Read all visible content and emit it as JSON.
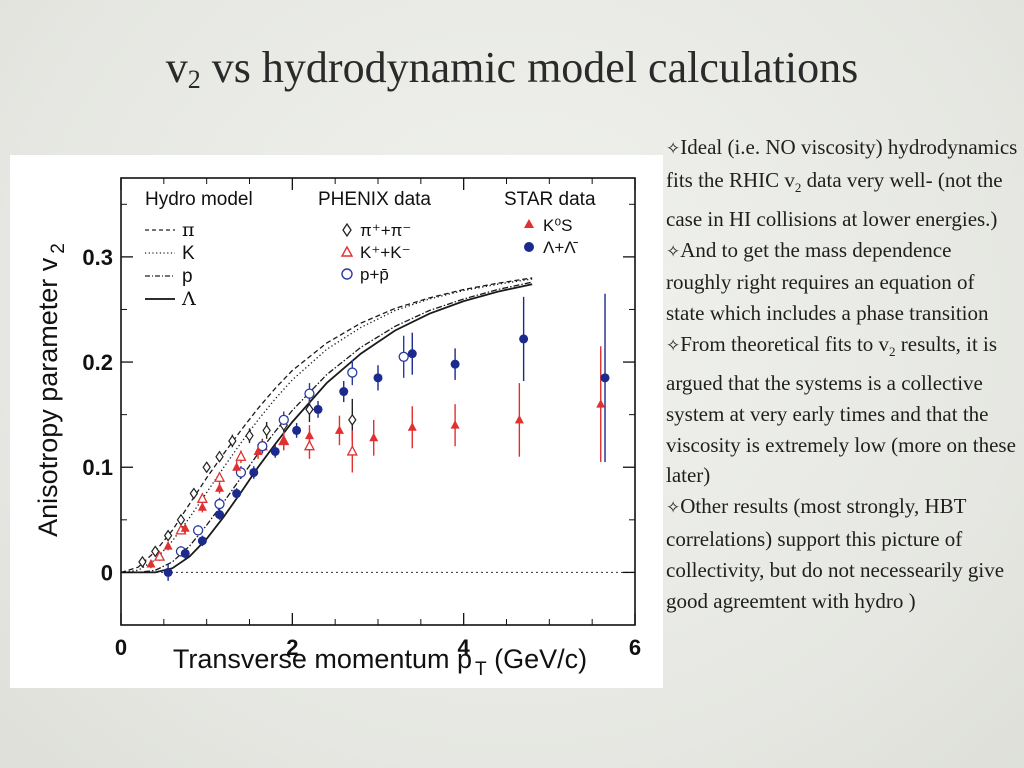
{
  "slide": {
    "title_main": "v",
    "title_sub": "2",
    "title_rest": " vs hydrodynamic model calculations",
    "bullets": [
      {
        "star": "✧",
        "text": "Ideal (i.e. NO viscosity) hydrodynamics fits the RHIC v",
        "sub": "2",
        "after": " data very well- (not the case in HI collisions at lower energies.)"
      },
      {
        "star": "✧",
        "text": "And to get the mass dependence roughly right requires an equation of state which includes a phase transition",
        "sub": "",
        "after": ""
      },
      {
        "star": "✧",
        "text": "From theoretical fits to v",
        "sub": "2",
        "after": " results, it is argued that the systems is a collective system at very early times and that the viscosity is extremely low (more on these later)"
      },
      {
        "star": "✧",
        "text": "Other results (most strongly, HBT correlations) support this picture of collectivity, but do not necessearily give good agreemtent with hydro )",
        "sub": "",
        "after": ""
      }
    ]
  },
  "chart_data": {
    "type": "scatter",
    "xlabel": "Transverse momentum p",
    "xlabel_sub": "T",
    "xlabel_unit": " (GeV/c)",
    "ylabel": "Anisotropy parameter v",
    "ylabel_sub": "2",
    "xlim": [
      0,
      6
    ],
    "ylim": [
      -0.05,
      0.375
    ],
    "x_ticks": [
      0,
      2,
      4,
      6
    ],
    "y_ticks": [
      0,
      0.1,
      0.2,
      0.3
    ],
    "y_tick_labels": [
      "0",
      "0.1",
      "0.2",
      "0.3"
    ],
    "legend_groups": [
      {
        "title": "Hydro model",
        "entries": [
          "π",
          "K",
          "p",
          "Λ"
        ]
      },
      {
        "title": "PHENIX data",
        "entries": [
          "π⁺+π⁻",
          "K⁺+K⁻",
          "p+p̄"
        ]
      },
      {
        "title": "STAR data",
        "entries": [
          "K⁰S",
          "Λ+Λ̄"
        ]
      }
    ],
    "hydro_curves": [
      {
        "name": "π",
        "style": "dashed",
        "x": [
          0,
          0.2,
          0.4,
          0.6,
          0.8,
          1.0,
          1.2,
          1.4,
          1.6,
          1.8,
          2.0,
          2.4,
          2.8,
          3.2,
          3.6,
          4.0,
          4.4,
          4.8
        ],
        "y": [
          0,
          0.005,
          0.02,
          0.04,
          0.065,
          0.09,
          0.113,
          0.135,
          0.156,
          0.175,
          0.192,
          0.218,
          0.237,
          0.251,
          0.261,
          0.269,
          0.275,
          0.28
        ]
      },
      {
        "name": "K",
        "style": "dotted",
        "x": [
          0,
          0.2,
          0.4,
          0.6,
          0.8,
          1.0,
          1.2,
          1.4,
          1.6,
          1.8,
          2.0,
          2.4,
          2.8,
          3.2,
          3.6,
          4.0,
          4.4,
          4.8
        ],
        "y": [
          0,
          0.002,
          0.012,
          0.03,
          0.052,
          0.076,
          0.1,
          0.123,
          0.145,
          0.165,
          0.183,
          0.212,
          0.233,
          0.249,
          0.26,
          0.268,
          0.274,
          0.279
        ]
      },
      {
        "name": "p",
        "style": "dashdot",
        "x": [
          0,
          0.2,
          0.4,
          0.6,
          0.8,
          1.0,
          1.2,
          1.4,
          1.6,
          1.8,
          2.0,
          2.4,
          2.8,
          3.2,
          3.6,
          4.0,
          4.4,
          4.8
        ],
        "y": [
          0,
          0,
          0.002,
          0.01,
          0.025,
          0.045,
          0.067,
          0.09,
          0.113,
          0.134,
          0.154,
          0.188,
          0.214,
          0.234,
          0.249,
          0.26,
          0.269,
          0.276
        ]
      },
      {
        "name": "Λ",
        "style": "solid",
        "x": [
          0,
          0.2,
          0.4,
          0.6,
          0.8,
          1.0,
          1.2,
          1.4,
          1.6,
          1.8,
          2.0,
          2.4,
          2.8,
          3.2,
          3.6,
          4.0,
          4.4,
          4.8
        ],
        "y": [
          0,
          0,
          0,
          0.004,
          0.015,
          0.032,
          0.053,
          0.076,
          0.1,
          0.122,
          0.143,
          0.18,
          0.208,
          0.23,
          0.246,
          0.258,
          0.267,
          0.274
        ]
      }
    ],
    "series": [
      {
        "name": "π⁺+π⁻",
        "group": "PHENIX",
        "marker": "open-diamond",
        "color": "#222222",
        "x": [
          0.25,
          0.4,
          0.55,
          0.7,
          0.85,
          1.0,
          1.15,
          1.3,
          1.5,
          1.7,
          1.9,
          2.2,
          2.7
        ],
        "y": [
          0.01,
          0.02,
          0.035,
          0.05,
          0.075,
          0.1,
          0.11,
          0.125,
          0.13,
          0.135,
          0.14,
          0.155,
          0.145
        ],
        "err": [
          0.003,
          0.003,
          0.003,
          0.004,
          0.004,
          0.005,
          0.005,
          0.006,
          0.007,
          0.008,
          0.01,
          0.012,
          0.02
        ]
      },
      {
        "name": "K⁺+K⁻",
        "group": "PHENIX",
        "marker": "open-triangle",
        "color": "#e03030",
        "x": [
          0.45,
          0.7,
          0.95,
          1.15,
          1.4,
          1.65,
          1.9,
          2.2,
          2.7
        ],
        "y": [
          0.015,
          0.04,
          0.07,
          0.09,
          0.11,
          0.12,
          0.125,
          0.12,
          0.115
        ],
        "err": [
          0.004,
          0.004,
          0.005,
          0.005,
          0.006,
          0.007,
          0.009,
          0.012,
          0.02
        ]
      },
      {
        "name": "p+p̄",
        "group": "PHENIX",
        "marker": "open-circle",
        "color": "#2a3ca0",
        "x": [
          0.7,
          0.9,
          1.15,
          1.4,
          1.65,
          1.9,
          2.2,
          2.7,
          3.3
        ],
        "y": [
          0.02,
          0.04,
          0.065,
          0.095,
          0.12,
          0.145,
          0.17,
          0.19,
          0.205
        ],
        "err": [
          0.005,
          0.005,
          0.006,
          0.006,
          0.007,
          0.008,
          0.01,
          0.012,
          0.02
        ]
      },
      {
        "name": "K⁰S",
        "group": "STAR",
        "marker": "filled-triangle",
        "color": "#e03030",
        "x": [
          0.35,
          0.55,
          0.75,
          0.95,
          1.15,
          1.35,
          1.6,
          1.9,
          2.2,
          2.55,
          2.95,
          3.4,
          3.9,
          4.65,
          5.6
        ],
        "y": [
          0.008,
          0.025,
          0.042,
          0.062,
          0.08,
          0.1,
          0.115,
          0.125,
          0.13,
          0.135,
          0.128,
          0.138,
          0.14,
          0.145,
          0.16
        ],
        "err": [
          0.004,
          0.004,
          0.004,
          0.005,
          0.005,
          0.006,
          0.007,
          0.008,
          0.01,
          0.014,
          0.017,
          0.02,
          0.02,
          0.035,
          0.055
        ]
      },
      {
        "name": "Λ+Λ̄",
        "group": "STAR",
        "marker": "filled-circle",
        "color": "#1b2a8c",
        "x": [
          0.55,
          0.75,
          0.95,
          1.15,
          1.35,
          1.55,
          1.8,
          2.05,
          2.3,
          2.6,
          3.0,
          3.4,
          3.9,
          4.7,
          5.65
        ],
        "y": [
          0,
          0.018,
          0.03,
          0.055,
          0.075,
          0.095,
          0.115,
          0.135,
          0.155,
          0.172,
          0.185,
          0.208,
          0.198,
          0.222,
          0.185
        ],
        "err": [
          0.008,
          0.005,
          0.005,
          0.005,
          0.005,
          0.006,
          0.006,
          0.007,
          0.008,
          0.01,
          0.012,
          0.02,
          0.015,
          0.04,
          0.08
        ]
      }
    ]
  }
}
